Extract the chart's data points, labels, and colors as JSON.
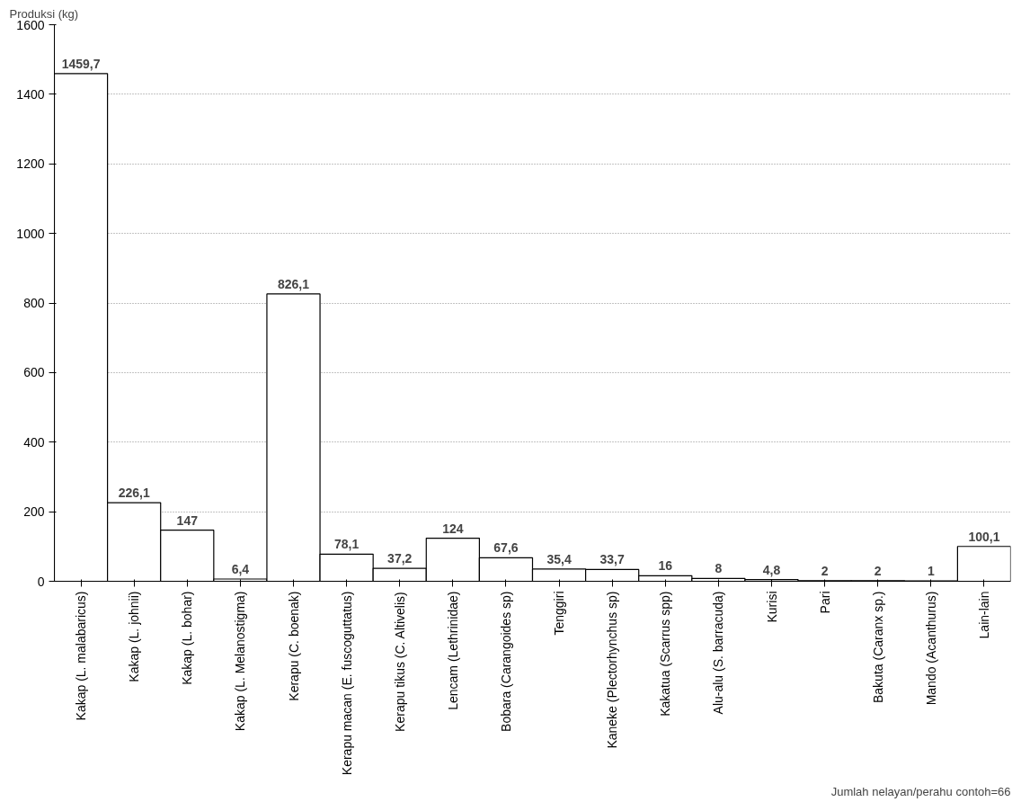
{
  "chart_data": {
    "type": "bar",
    "ylabel": "Produksi (kg)",
    "categories": [
      "Kakap (L. malabaricus)",
      "Kakap (L. johnii)",
      "Kakap (L. bohar)",
      "Kakap (L. Melanostigma)",
      "Kerapu (C. boenak)",
      "Kerapu macan (E. fuscoguttatus)",
      "Kerapu tikus (C. Altivelis)",
      "Lencam (Lethrinidae)",
      "Bobara (Carangoides sp)",
      "Tenggiri",
      "Kaneke (Plectorhynchus sp)",
      "Kakatua (Scarrus spp)",
      "Alu-alu (S. barracuda)",
      "Kurisi",
      "Pari",
      "Bakuta (Caranx sp.)",
      "Mando (Acanthurus)",
      "Lain-lain"
    ],
    "values": [
      1459.7,
      226.1,
      147,
      6.4,
      826.1,
      78.1,
      37.2,
      124,
      67.6,
      35.4,
      33.7,
      16,
      8,
      4.8,
      2,
      2,
      1,
      100.1
    ],
    "value_labels": [
      "1459,7",
      "226,1",
      "147",
      "6,4",
      "826,1",
      "78,1",
      "37,2",
      "124",
      "67,6",
      "35,4",
      "33,7",
      "16",
      "8",
      "4,8",
      "2",
      "2",
      "1",
      "100,1"
    ],
    "color": "#ffffff",
    "ylim": [
      0,
      1600
    ],
    "yticks": [
      0,
      200,
      400,
      600,
      800,
      1000,
      1200,
      1400,
      1600
    ],
    "grid": "y",
    "annotations": [
      "Jumlah nelayan/perahu contoh=66"
    ]
  }
}
